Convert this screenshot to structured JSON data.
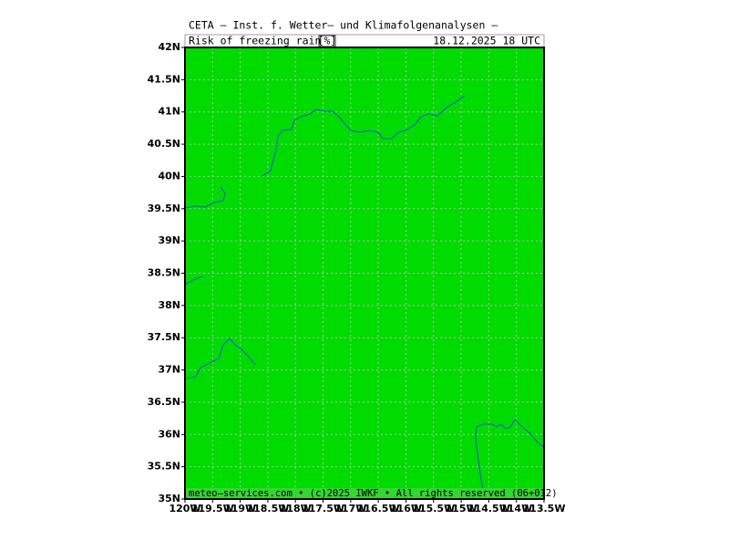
{
  "header": {
    "title": "CETA — Inst. f. Wetter— und Klimafolgenanalysen —",
    "parameter": "Risk_of_freezing_rain_",
    "unit": "[%]",
    "valid_time": "18.12.2025  18  UTC"
  },
  "map": {
    "lat_ticks": [
      "42N",
      "41.5N",
      "41N",
      "40.5N",
      "40N",
      "39.5N",
      "39N",
      "38.5N",
      "38N",
      "37.5N",
      "37N",
      "36.5N",
      "36N",
      "35.5N",
      "35N"
    ],
    "lon_ticks": [
      "120W",
      "119.5W",
      "119W",
      "118.5W",
      "118W",
      "117.5W",
      "117W",
      "116.5W",
      "116W",
      "115.5W",
      "115W",
      "114.5W",
      "114W",
      "113.5W"
    ]
  },
  "footer": {
    "credit": "meteo—services.com  •  (c)2025  IWKF  •  All rights reserved  (06+012)"
  }
}
